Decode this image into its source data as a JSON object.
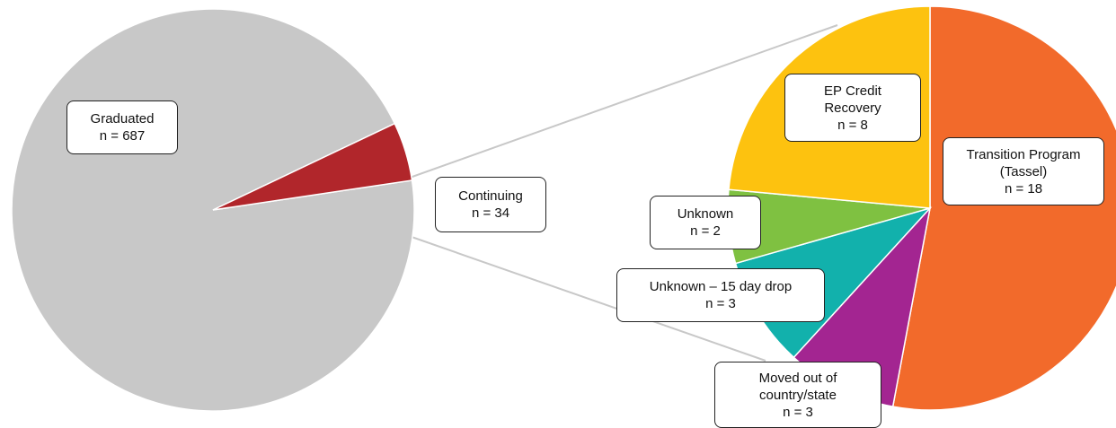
{
  "chart_data": [
    {
      "type": "pie",
      "categories": [
        "Graduated",
        "Continuing"
      ],
      "values": [
        687,
        34
      ],
      "value_labels": [
        "n = 687",
        "n = 34"
      ],
      "colors": [
        "#c8c8c8",
        "#b1262b"
      ]
    },
    {
      "type": "pie",
      "categories": [
        "Transition Program (Tassel)",
        "Moved out of country/state",
        "Unknown – 15 day drop",
        "Unknown",
        "EP Credit Recovery"
      ],
      "values": [
        18,
        3,
        3,
        2,
        8
      ],
      "value_labels": [
        "n = 18",
        "n = 3",
        "n = 3",
        "n = 2",
        "n = 8"
      ],
      "colors": [
        "#f26a2b",
        "#a32591",
        "#12b1ac",
        "#7fc141",
        "#fdc20f"
      ]
    }
  ]
}
